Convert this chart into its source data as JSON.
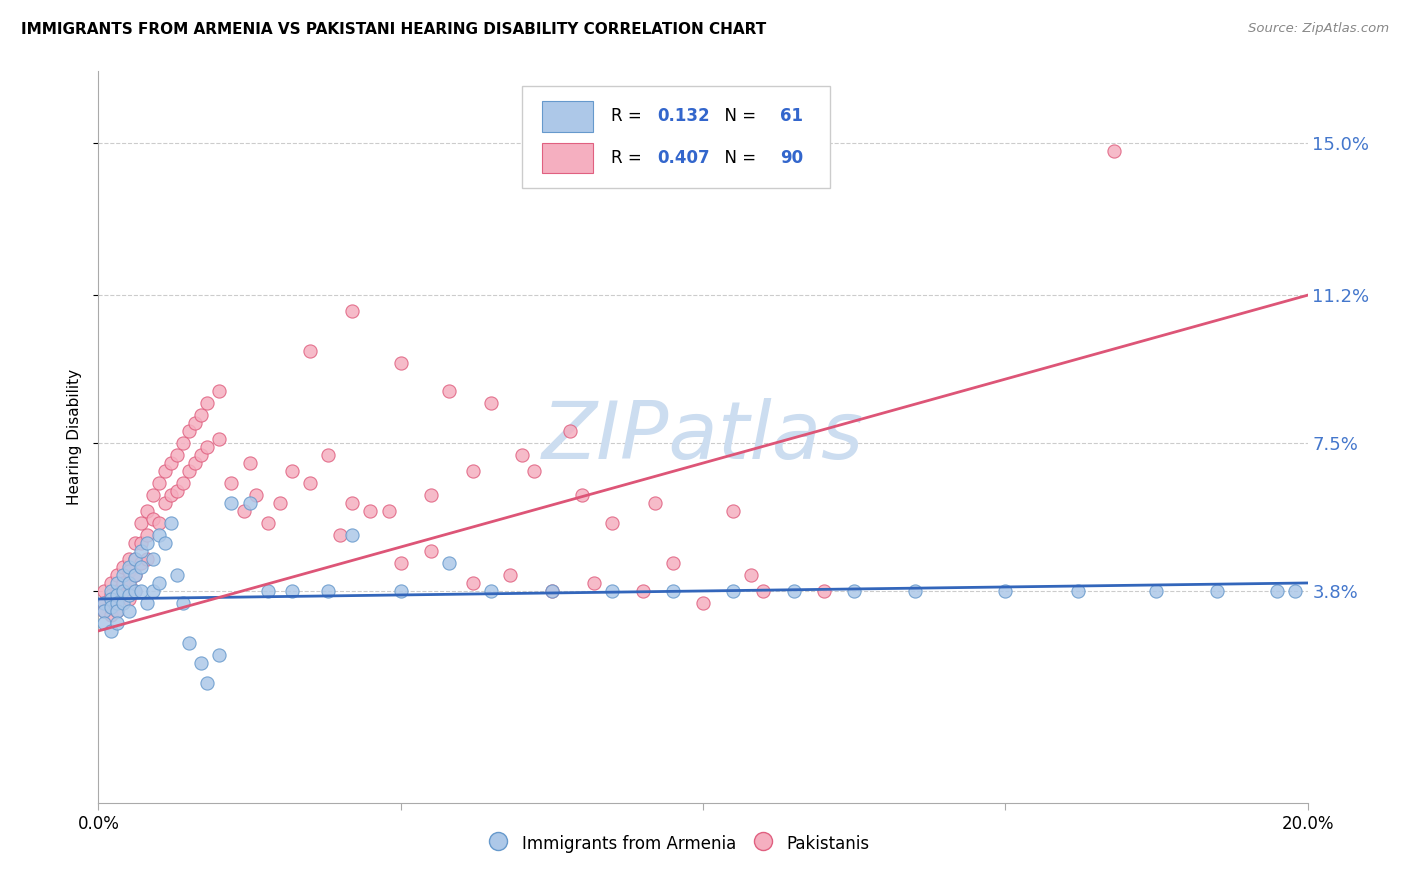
{
  "title": "IMMIGRANTS FROM ARMENIA VS PAKISTANI HEARING DISABILITY CORRELATION CHART",
  "source": "Source: ZipAtlas.com",
  "ylabel": "Hearing Disability",
  "ytick_labels": [
    "3.8%",
    "7.5%",
    "11.2%",
    "15.0%"
  ],
  "ytick_values": [
    0.038,
    0.075,
    0.112,
    0.15
  ],
  "xlim": [
    0.0,
    0.2
  ],
  "ylim": [
    -0.015,
    0.168
  ],
  "armenia_R": 0.132,
  "armenia_N": 61,
  "pakistan_R": 0.407,
  "pakistan_N": 90,
  "armenia_color": "#adc8e8",
  "armenia_edge": "#6699cc",
  "pakistan_color": "#f5afc0",
  "pakistan_edge": "#e06080",
  "armenia_line_color": "#3366bb",
  "pakistan_line_color": "#dd5577",
  "watermark_color": "#ccddf0",
  "armenia_line_x0": 0.0,
  "armenia_line_y0": 0.036,
  "armenia_line_x1": 0.2,
  "armenia_line_y1": 0.04,
  "pakistan_line_x0": 0.0,
  "pakistan_line_y0": 0.028,
  "pakistan_line_x1": 0.2,
  "pakistan_line_y1": 0.112,
  "armenia_x": [
    0.001,
    0.001,
    0.001,
    0.002,
    0.002,
    0.002,
    0.002,
    0.003,
    0.003,
    0.003,
    0.003,
    0.003,
    0.004,
    0.004,
    0.004,
    0.005,
    0.005,
    0.005,
    0.005,
    0.006,
    0.006,
    0.006,
    0.007,
    0.007,
    0.007,
    0.008,
    0.008,
    0.009,
    0.009,
    0.01,
    0.01,
    0.011,
    0.012,
    0.013,
    0.014,
    0.015,
    0.017,
    0.018,
    0.02,
    0.022,
    0.025,
    0.028,
    0.032,
    0.038,
    0.042,
    0.05,
    0.058,
    0.065,
    0.075,
    0.085,
    0.095,
    0.105,
    0.115,
    0.125,
    0.135,
    0.15,
    0.162,
    0.175,
    0.185,
    0.195,
    0.198
  ],
  "armenia_y": [
    0.035,
    0.033,
    0.03,
    0.038,
    0.036,
    0.034,
    0.028,
    0.04,
    0.037,
    0.035,
    0.033,
    0.03,
    0.042,
    0.038,
    0.035,
    0.044,
    0.04,
    0.037,
    0.033,
    0.046,
    0.042,
    0.038,
    0.048,
    0.044,
    0.038,
    0.05,
    0.035,
    0.046,
    0.038,
    0.052,
    0.04,
    0.05,
    0.055,
    0.042,
    0.035,
    0.025,
    0.02,
    0.015,
    0.022,
    0.06,
    0.06,
    0.038,
    0.038,
    0.038,
    0.052,
    0.038,
    0.045,
    0.038,
    0.038,
    0.038,
    0.038,
    0.038,
    0.038,
    0.038,
    0.038,
    0.038,
    0.038,
    0.038,
    0.038,
    0.038,
    0.038
  ],
  "pakistan_x": [
    0.001,
    0.001,
    0.001,
    0.002,
    0.002,
    0.002,
    0.002,
    0.003,
    0.003,
    0.003,
    0.003,
    0.004,
    0.004,
    0.004,
    0.005,
    0.005,
    0.005,
    0.005,
    0.006,
    0.006,
    0.006,
    0.006,
    0.007,
    0.007,
    0.007,
    0.008,
    0.008,
    0.008,
    0.009,
    0.009,
    0.01,
    0.01,
    0.011,
    0.011,
    0.012,
    0.012,
    0.013,
    0.013,
    0.014,
    0.014,
    0.015,
    0.015,
    0.016,
    0.016,
    0.017,
    0.017,
    0.018,
    0.018,
    0.02,
    0.02,
    0.022,
    0.024,
    0.025,
    0.026,
    0.028,
    0.03,
    0.032,
    0.035,
    0.038,
    0.042,
    0.045,
    0.05,
    0.055,
    0.062,
    0.068,
    0.075,
    0.082,
    0.09,
    0.1,
    0.11,
    0.04,
    0.048,
    0.055,
    0.062,
    0.07,
    0.078,
    0.085,
    0.095,
    0.108,
    0.12,
    0.035,
    0.042,
    0.05,
    0.058,
    0.065,
    0.072,
    0.08,
    0.092,
    0.105,
    0.168
  ],
  "pakistan_y": [
    0.038,
    0.035,
    0.033,
    0.04,
    0.037,
    0.035,
    0.032,
    0.042,
    0.038,
    0.036,
    0.033,
    0.044,
    0.04,
    0.037,
    0.046,
    0.043,
    0.04,
    0.036,
    0.05,
    0.046,
    0.042,
    0.038,
    0.055,
    0.05,
    0.045,
    0.058,
    0.052,
    0.046,
    0.062,
    0.056,
    0.065,
    0.055,
    0.068,
    0.06,
    0.07,
    0.062,
    0.072,
    0.063,
    0.075,
    0.065,
    0.078,
    0.068,
    0.08,
    0.07,
    0.082,
    0.072,
    0.085,
    0.074,
    0.088,
    0.076,
    0.065,
    0.058,
    0.07,
    0.062,
    0.055,
    0.06,
    0.068,
    0.065,
    0.072,
    0.06,
    0.058,
    0.045,
    0.048,
    0.04,
    0.042,
    0.038,
    0.04,
    0.038,
    0.035,
    0.038,
    0.052,
    0.058,
    0.062,
    0.068,
    0.072,
    0.078,
    0.055,
    0.045,
    0.042,
    0.038,
    0.098,
    0.108,
    0.095,
    0.088,
    0.085,
    0.068,
    0.062,
    0.06,
    0.058,
    0.148
  ]
}
